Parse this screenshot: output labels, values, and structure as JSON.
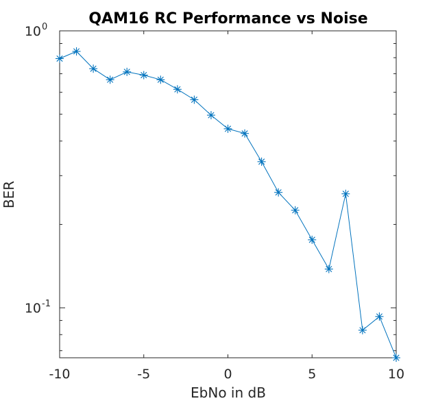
{
  "chart_data": {
    "type": "line",
    "title": "QAM16 RC Performance vs Noise",
    "xlabel": "EbNo in dB",
    "ylabel": "BER",
    "xlim": [
      -10,
      10
    ],
    "ylim": [
      0.066,
      1.0
    ],
    "yscale": "log",
    "grid": false,
    "x_ticks": [
      {
        "value": -10,
        "label": "-10"
      },
      {
        "value": -5,
        "label": "-5"
      },
      {
        "value": 0,
        "label": "0"
      },
      {
        "value": 5,
        "label": "5"
      },
      {
        "value": 10,
        "label": "10"
      }
    ],
    "y_ticks_major": [
      {
        "value": 1.0,
        "base": "10",
        "exp": "0"
      },
      {
        "value": 0.1,
        "base": "10",
        "exp": "-1"
      }
    ],
    "y_ticks_minor": [
      0.07,
      0.08,
      0.09,
      0.2,
      0.3,
      0.4,
      0.5,
      0.6,
      0.7,
      0.8,
      0.9
    ],
    "series": [
      {
        "marker": "asterisk",
        "color": "#0072bd",
        "x": [
          -10,
          -9,
          -8,
          -7,
          -6,
          -5,
          -4,
          -3,
          -2,
          -1,
          0,
          1,
          2,
          3,
          4,
          5,
          6,
          7,
          8,
          9,
          10
        ],
        "y": [
          0.794,
          0.843,
          0.73,
          0.666,
          0.711,
          0.692,
          0.666,
          0.615,
          0.564,
          0.496,
          0.443,
          0.426,
          0.337,
          0.261,
          0.225,
          0.176,
          0.138,
          0.258,
          0.083,
          0.093,
          0.066
        ]
      }
    ]
  }
}
